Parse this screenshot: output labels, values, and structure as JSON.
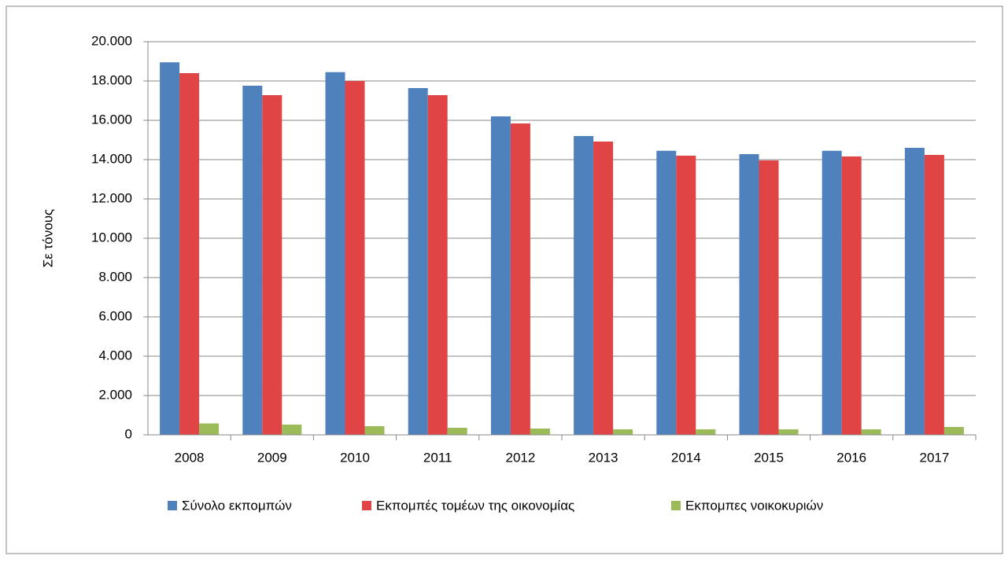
{
  "chart_data": {
    "type": "bar",
    "y_label": "Σε τόνους",
    "categories": [
      "2008",
      "2009",
      "2010",
      "2011",
      "2012",
      "2013",
      "2014",
      "2015",
      "2016",
      "2017"
    ],
    "series": [
      {
        "name": "Σύνολο εκπομπών",
        "color": "#4f81bd",
        "values": [
          18950,
          17760,
          18450,
          17640,
          16200,
          15200,
          14450,
          14280,
          14450,
          14600
        ]
      },
      {
        "name": "Εκπομπές τομέων της οικονομίας",
        "color": "#e04444",
        "values": [
          18400,
          17280,
          18000,
          17280,
          15840,
          14920,
          14200,
          13960,
          14160,
          14240
        ]
      },
      {
        "name": "Εκπομπες νοικοκυριών",
        "color": "#9bbb59",
        "values": [
          580,
          520,
          440,
          360,
          320,
          280,
          280,
          280,
          280,
          400
        ]
      }
    ],
    "ylim": [
      0,
      20000
    ],
    "yticks": [
      0,
      {
        "value": 2000,
        "label": "2.000"
      },
      {
        "value": 4000,
        "label": "4.000"
      },
      {
        "value": 6000,
        "label": "6.000"
      },
      {
        "value": 8000,
        "label": "8.000"
      },
      {
        "value": 10000,
        "label": "10.000"
      },
      {
        "value": 12000,
        "label": "12.000"
      },
      {
        "value": 14000,
        "label": "14.000"
      },
      {
        "value": 16000,
        "label": "16.000"
      },
      {
        "value": 18000,
        "label": "18.000"
      },
      {
        "value": 20000,
        "label": "20.000"
      }
    ],
    "grid": true,
    "legend": "bottom"
  }
}
